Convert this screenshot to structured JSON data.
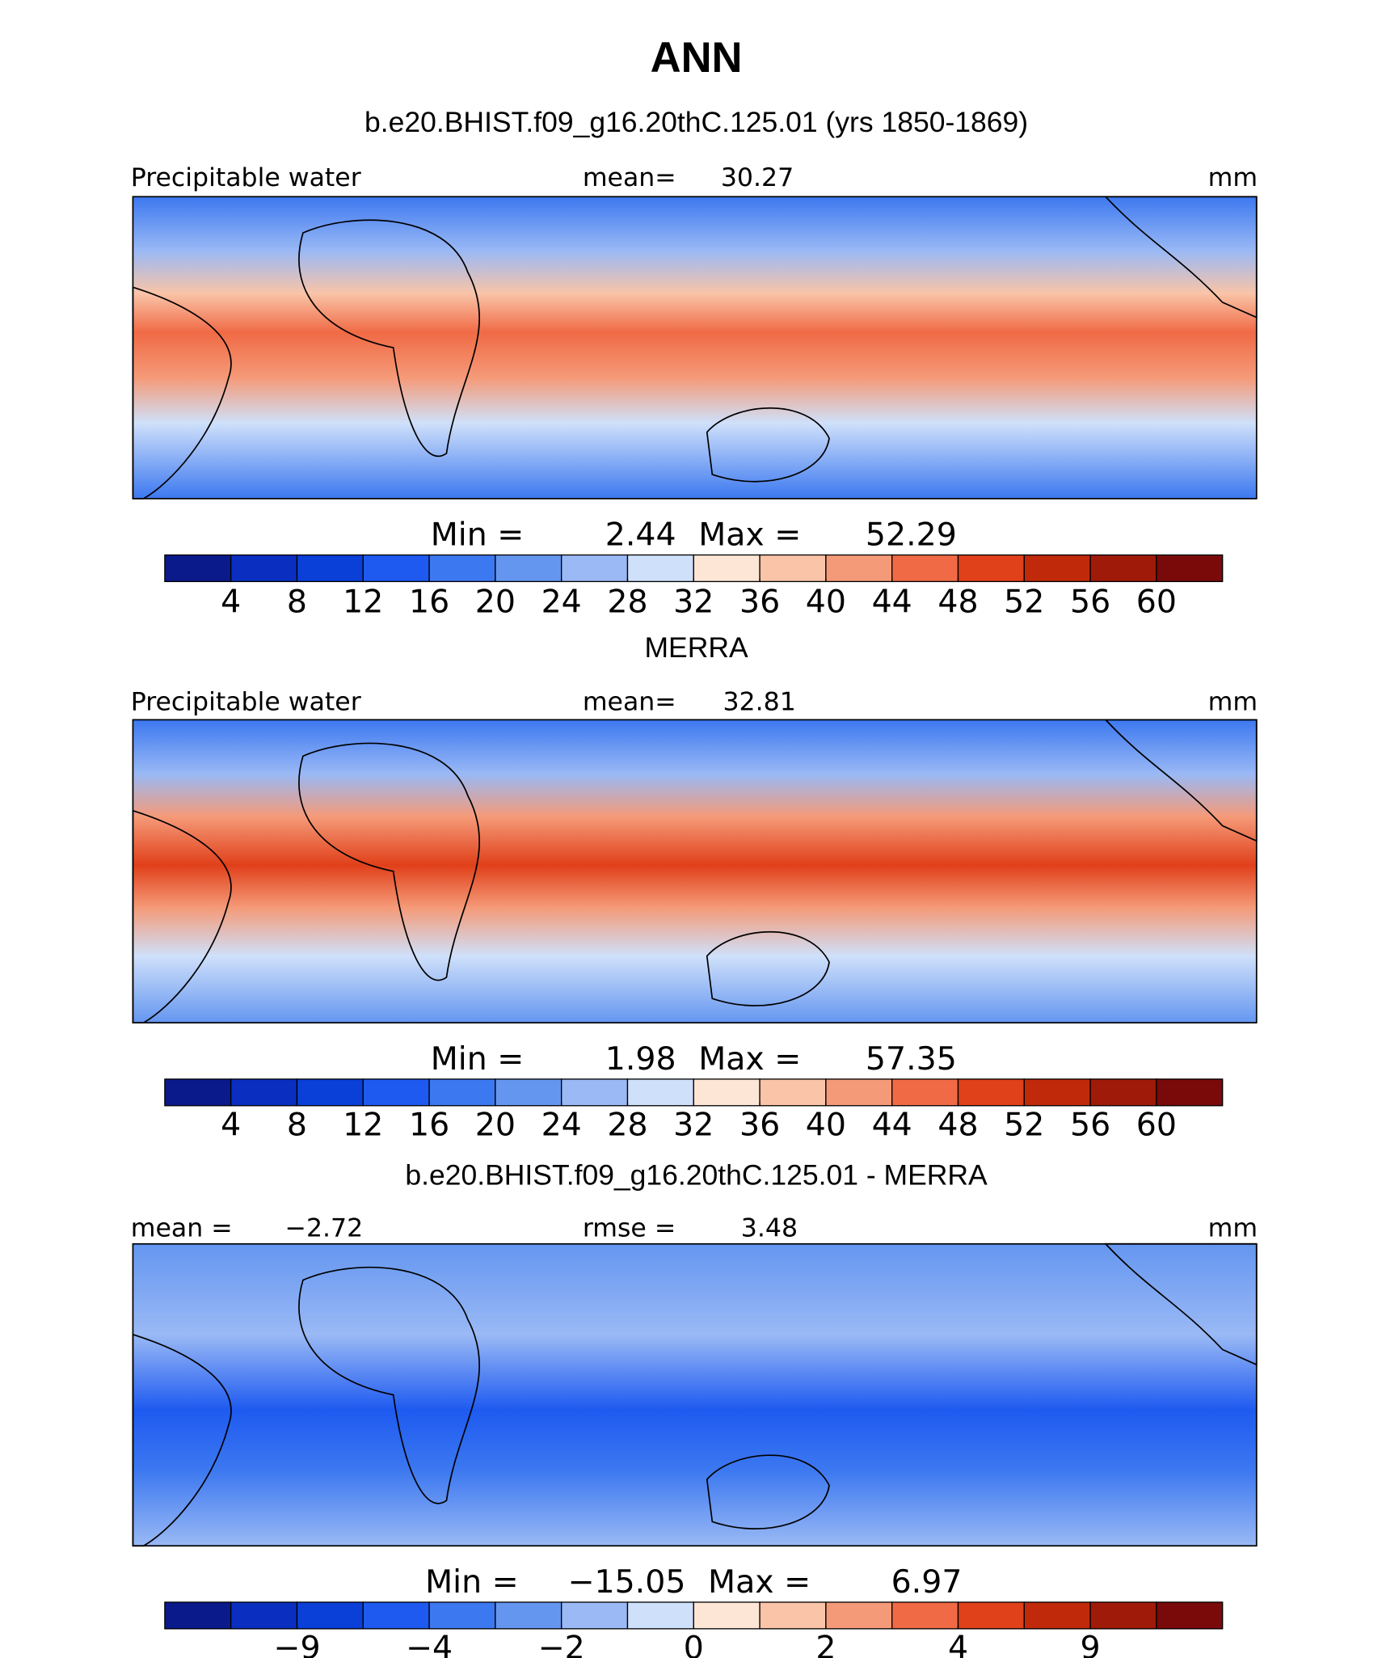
{
  "title": "ANN",
  "colormap": [
    "#0a1a8a",
    "#0a2fc0",
    "#0a3fd8",
    "#1e5af0",
    "#3c78f0",
    "#6496f0",
    "#9ab9f5",
    "#cfe0fa",
    "#fde6d6",
    "#f9c4a8",
    "#f59a78",
    "#f06a45",
    "#e0401a",
    "#c02a0a",
    "#a01a0a",
    "#7a0a0a"
  ],
  "panels": [
    {
      "subtitle": "b.e20.BHIST.f09_g16.20thC.125.01 (yrs 1850-1869)",
      "header_left": {
        "text": "Precipitable water"
      },
      "header_center": {
        "text": "mean=",
        "value": 30.27
      },
      "header_right": {
        "text": "mm"
      },
      "min": {
        "text": "Min =",
        "value": 2.44
      },
      "max": {
        "text": "Max =",
        "value": 52.29
      },
      "ticks": [
        4,
        8,
        12,
        16,
        20,
        24,
        28,
        32,
        36,
        40,
        44,
        48,
        52,
        56,
        60
      ]
    },
    {
      "subtitle": "MERRA",
      "header_left": {
        "text": "Precipitable water"
      },
      "header_center": {
        "text": "mean=",
        "value": 32.81
      },
      "header_right": {
        "text": "mm"
      },
      "min": {
        "text": "Min =",
        "value": 1.98
      },
      "max": {
        "text": "Max =",
        "value": 57.35
      },
      "ticks": [
        4,
        8,
        12,
        16,
        20,
        24,
        28,
        32,
        36,
        40,
        44,
        48,
        52,
        56,
        60
      ]
    },
    {
      "subtitle": "b.e20.BHIST.f09_g16.20thC.125.01 - MERRA",
      "header_left": {
        "text": "mean =",
        "value": {
          "value": -2.72,
          "label": "−2.72"
        }
      },
      "header_center": {
        "text": "rmse =",
        "value": 3.48
      },
      "header_right": {
        "text": "mm"
      },
      "min": {
        "text": "Min =",
        "value": {
          "value": -15.05,
          "label": "−15.05"
        }
      },
      "max": {
        "text": "Max =",
        "value": 6.97
      },
      "ticks": [
        {
          "value": -9,
          "label": "−9"
        },
        {
          "value": -4,
          "label": "−4"
        },
        {
          "value": -2,
          "label": "−2"
        },
        0,
        2,
        4,
        9
      ]
    }
  ]
}
